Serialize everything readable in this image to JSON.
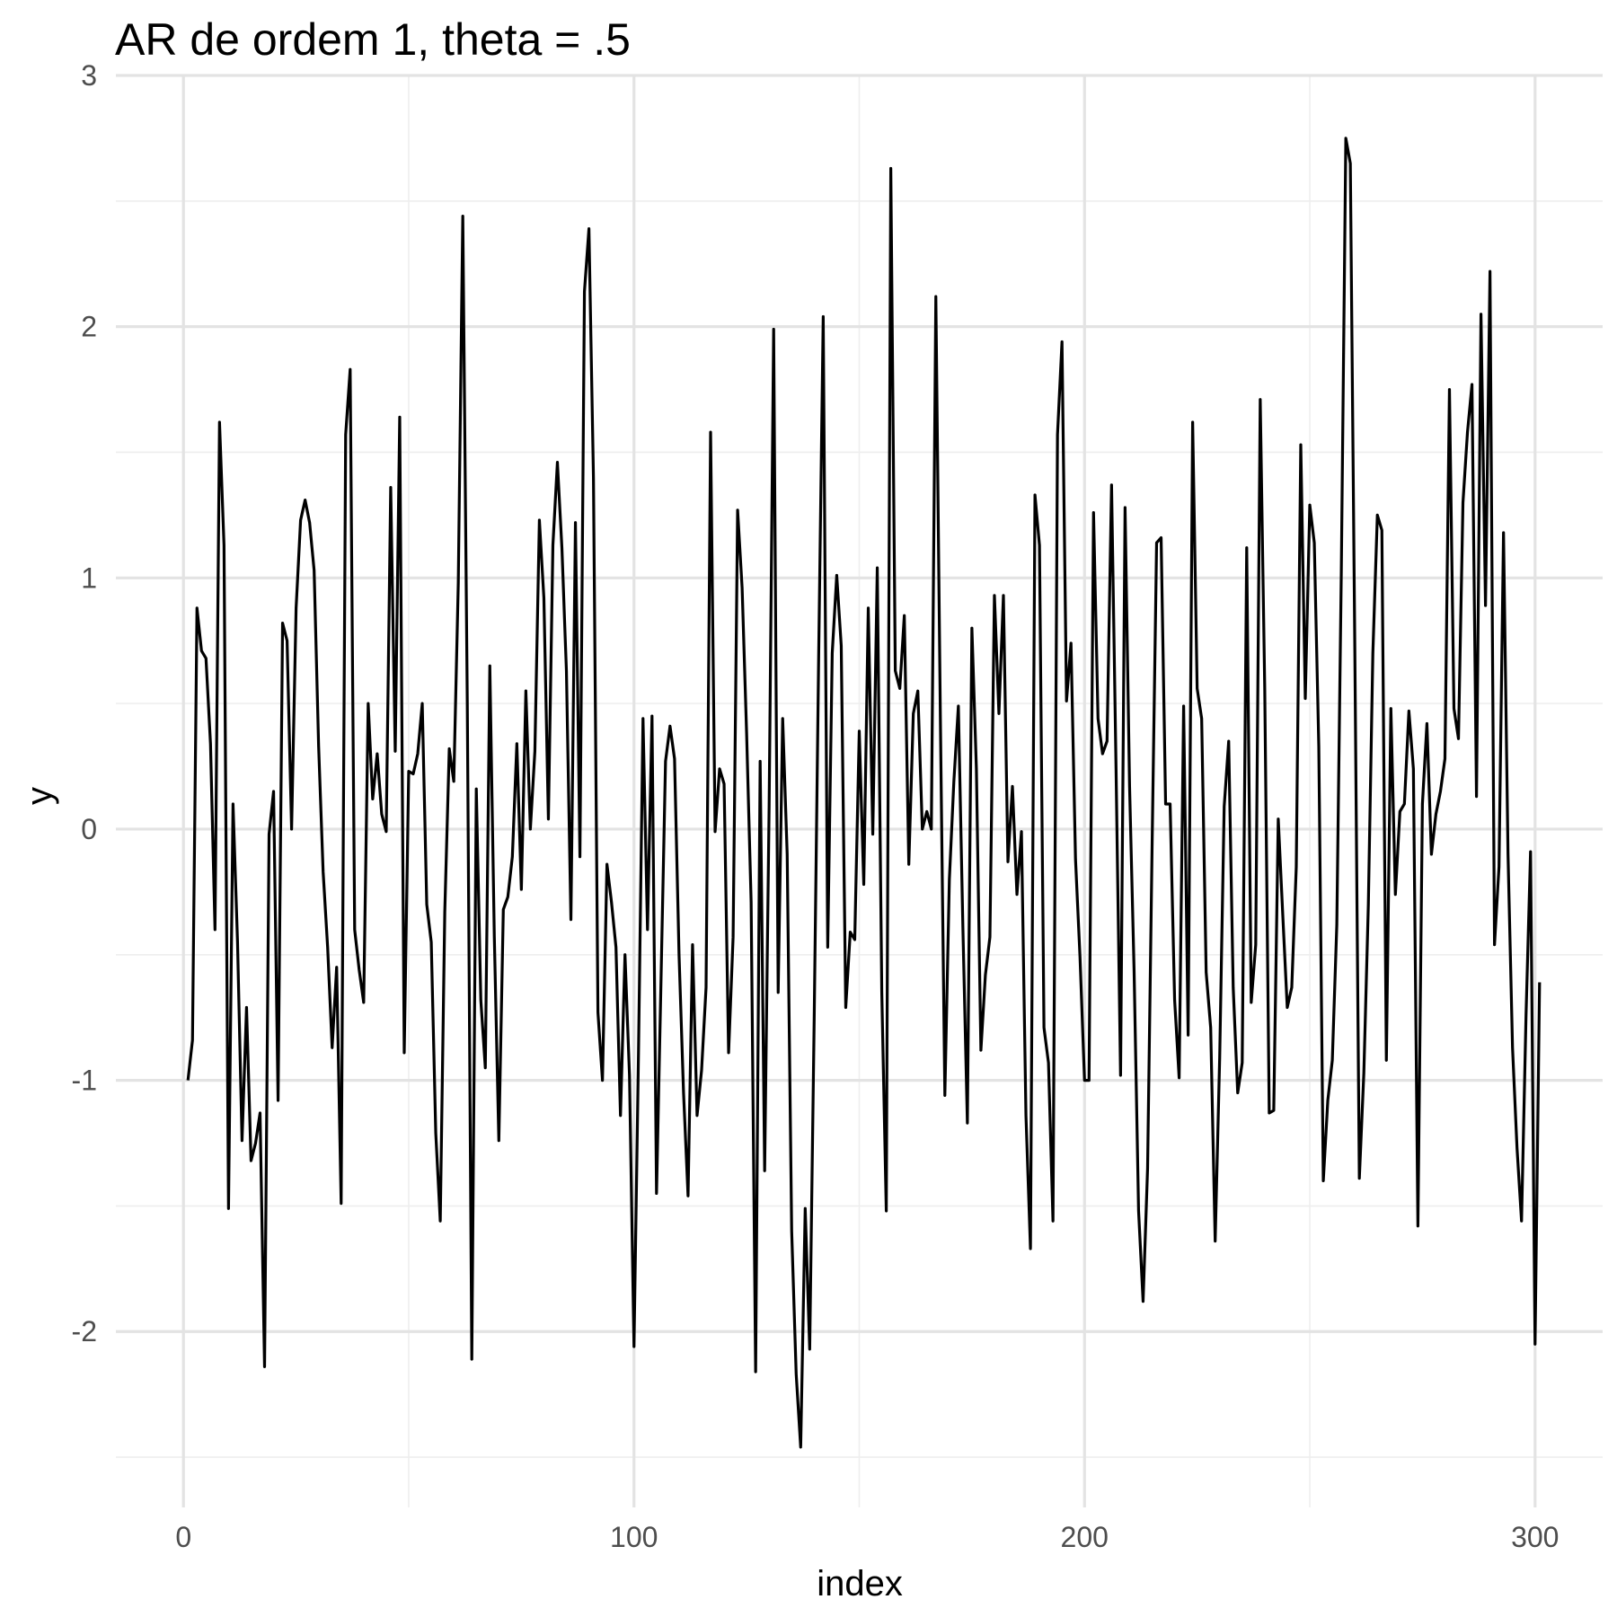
{
  "chart_data": {
    "type": "line",
    "title": "AR de ordem 1, theta = .5",
    "xlabel": "index",
    "ylabel": "y",
    "xlim": [
      -15,
      315
    ],
    "ylim": [
      -2.7,
      3
    ],
    "x_major_ticks": [
      0,
      100,
      200,
      300
    ],
    "x_tick_labels": [
      "0",
      "100",
      "200",
      "300"
    ],
    "x_minor_ticks": [
      50,
      150,
      250
    ],
    "y_major_ticks": [
      -2,
      -1,
      0,
      1,
      2,
      3
    ],
    "y_tick_labels": [
      "-2",
      "-1",
      "0",
      "1",
      "2",
      "3"
    ],
    "y_minor_ticks": [
      -2.5,
      -1.5,
      -0.5,
      0.5,
      1.5,
      2.5
    ],
    "grid": true,
    "legend": "none",
    "line_color": "#000000",
    "x_start": 1,
    "x_step": 1,
    "values": [
      -1.0,
      -0.84,
      0.88,
      0.71,
      0.68,
      0.34,
      -0.4,
      1.62,
      1.13,
      -1.51,
      0.1,
      -0.45,
      -1.24,
      -0.71,
      -1.32,
      -1.25,
      -1.13,
      -2.14,
      -0.02,
      0.15,
      -1.08,
      0.82,
      0.75,
      0.0,
      0.88,
      1.23,
      1.31,
      1.22,
      1.03,
      0.33,
      -0.17,
      -0.47,
      -0.87,
      -0.55,
      -1.49,
      1.57,
      1.83,
      -0.4,
      -0.56,
      -0.69,
      0.5,
      0.12,
      0.3,
      0.06,
      -0.01,
      1.36,
      0.31,
      1.64,
      -0.89,
      0.23,
      0.22,
      0.3,
      0.5,
      -0.3,
      -0.45,
      -1.21,
      -1.56,
      -0.33,
      0.32,
      0.19,
      0.98,
      2.44,
      0.5,
      -2.11,
      0.16,
      -0.68,
      -0.95,
      0.65,
      -0.43,
      -1.24,
      -0.32,
      -0.27,
      -0.11,
      0.34,
      -0.24,
      0.55,
      0.0,
      0.31,
      1.23,
      0.92,
      0.04,
      1.13,
      1.46,
      1.12,
      0.63,
      -0.36,
      1.22,
      -0.11,
      2.14,
      2.39,
      1.4,
      -0.73,
      -1.0,
      -0.14,
      -0.29,
      -0.47,
      -1.14,
      -0.5,
      -0.98,
      -2.06,
      -0.89,
      0.44,
      -0.4,
      0.45,
      -1.45,
      -0.6,
      0.27,
      0.41,
      0.28,
      -0.5,
      -1.05,
      -1.46,
      -0.46,
      -1.14,
      -0.96,
      -0.63,
      1.58,
      -0.01,
      0.24,
      0.18,
      -0.89,
      -0.43,
      1.27,
      0.96,
      0.38,
      -0.29,
      -2.16,
      0.27,
      -1.36,
      0.1,
      1.99,
      -0.65,
      0.44,
      -0.1,
      -1.6,
      -2.17,
      -2.46,
      -1.51,
      -2.07,
      -0.75,
      0.7,
      2.04,
      -0.47,
      0.7,
      1.01,
      0.73,
      -0.71,
      -0.41,
      -0.44,
      0.39,
      -0.22,
      0.88,
      -0.02,
      1.04,
      -0.65,
      -1.52,
      2.63,
      0.63,
      0.56,
      0.85,
      -0.14,
      0.46,
      0.55,
      0.0,
      0.07,
      0.0,
      2.12,
      0.45,
      -1.06,
      -0.2,
      0.19,
      0.49,
      -0.39,
      -1.17,
      0.8,
      0.24,
      -0.88,
      -0.58,
      -0.43,
      0.93,
      0.46,
      0.93,
      -0.13,
      0.17,
      -0.26,
      -0.01,
      -1.14,
      -1.67,
      1.33,
      1.13,
      -0.79,
      -0.93,
      -1.56,
      1.57,
      1.94,
      0.51,
      0.74,
      -0.12,
      -0.51,
      -1.0,
      -1.0,
      1.26,
      0.44,
      0.3,
      0.35,
      1.37,
      0.24,
      -0.98,
      1.28,
      0.17,
      -0.56,
      -1.52,
      -1.88,
      -1.35,
      -0.07,
      1.14,
      1.16,
      0.1,
      0.1,
      -0.68,
      -0.99,
      0.49,
      -0.82,
      1.62,
      0.56,
      0.44,
      -0.57,
      -0.79,
      -1.64,
      -0.91,
      0.09,
      0.35,
      -0.63,
      -1.05,
      -0.93,
      1.12,
      -0.69,
      -0.46,
      1.71,
      0.56,
      -1.13,
      -1.12,
      0.04,
      -0.34,
      -0.71,
      -0.63,
      -0.15,
      1.53,
      0.52,
      1.29,
      1.14,
      0.33,
      -1.4,
      -1.08,
      -0.92,
      -0.38,
      1.03,
      2.75,
      2.65,
      0.71,
      -1.39,
      -0.97,
      -0.3,
      0.7,
      1.25,
      1.19,
      -0.92,
      0.48,
      -0.26,
      0.07,
      0.1,
      0.47,
      0.24,
      -1.58,
      0.1,
      0.42,
      -0.1,
      0.06,
      0.15,
      0.28,
      1.75,
      0.48,
      0.36,
      1.3,
      1.58,
      1.77,
      0.13,
      2.05,
      0.89,
      2.22,
      -0.46,
      -0.15,
      1.18,
      -0.1,
      -0.87,
      -1.27,
      -1.56,
      -0.74,
      -0.09,
      -2.05,
      -0.61
    ]
  }
}
